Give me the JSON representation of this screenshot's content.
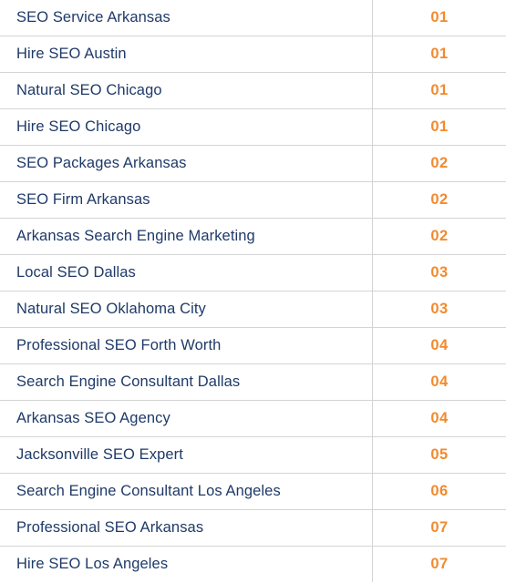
{
  "colors": {
    "keyword_text": "#1f3a68",
    "rank_text": "#f28a2e",
    "border": "#d4d4d4"
  },
  "rows": [
    {
      "keyword": "SEO Service Arkansas",
      "rank": "01"
    },
    {
      "keyword": "Hire SEO Austin",
      "rank": "01"
    },
    {
      "keyword": "Natural SEO Chicago",
      "rank": "01"
    },
    {
      "keyword": "Hire SEO Chicago",
      "rank": "01"
    },
    {
      "keyword": "SEO Packages Arkansas",
      "rank": "02"
    },
    {
      "keyword": "SEO Firm Arkansas",
      "rank": "02"
    },
    {
      "keyword": "Arkansas Search Engine Marketing",
      "rank": "02"
    },
    {
      "keyword": "Local SEO Dallas",
      "rank": "03"
    },
    {
      "keyword": "Natural SEO Oklahoma City",
      "rank": "03"
    },
    {
      "keyword": "Professional SEO Forth Worth",
      "rank": "04"
    },
    {
      "keyword": "Search Engine Consultant Dallas",
      "rank": "04"
    },
    {
      "keyword": "Arkansas SEO Agency",
      "rank": "04"
    },
    {
      "keyword": "Jacksonville SEO Expert",
      "rank": "05"
    },
    {
      "keyword": "Search Engine Consultant Los Angeles",
      "rank": "06"
    },
    {
      "keyword": "Professional SEO Arkansas",
      "rank": "07"
    },
    {
      "keyword": "Hire SEO Los Angeles",
      "rank": "07"
    }
  ]
}
